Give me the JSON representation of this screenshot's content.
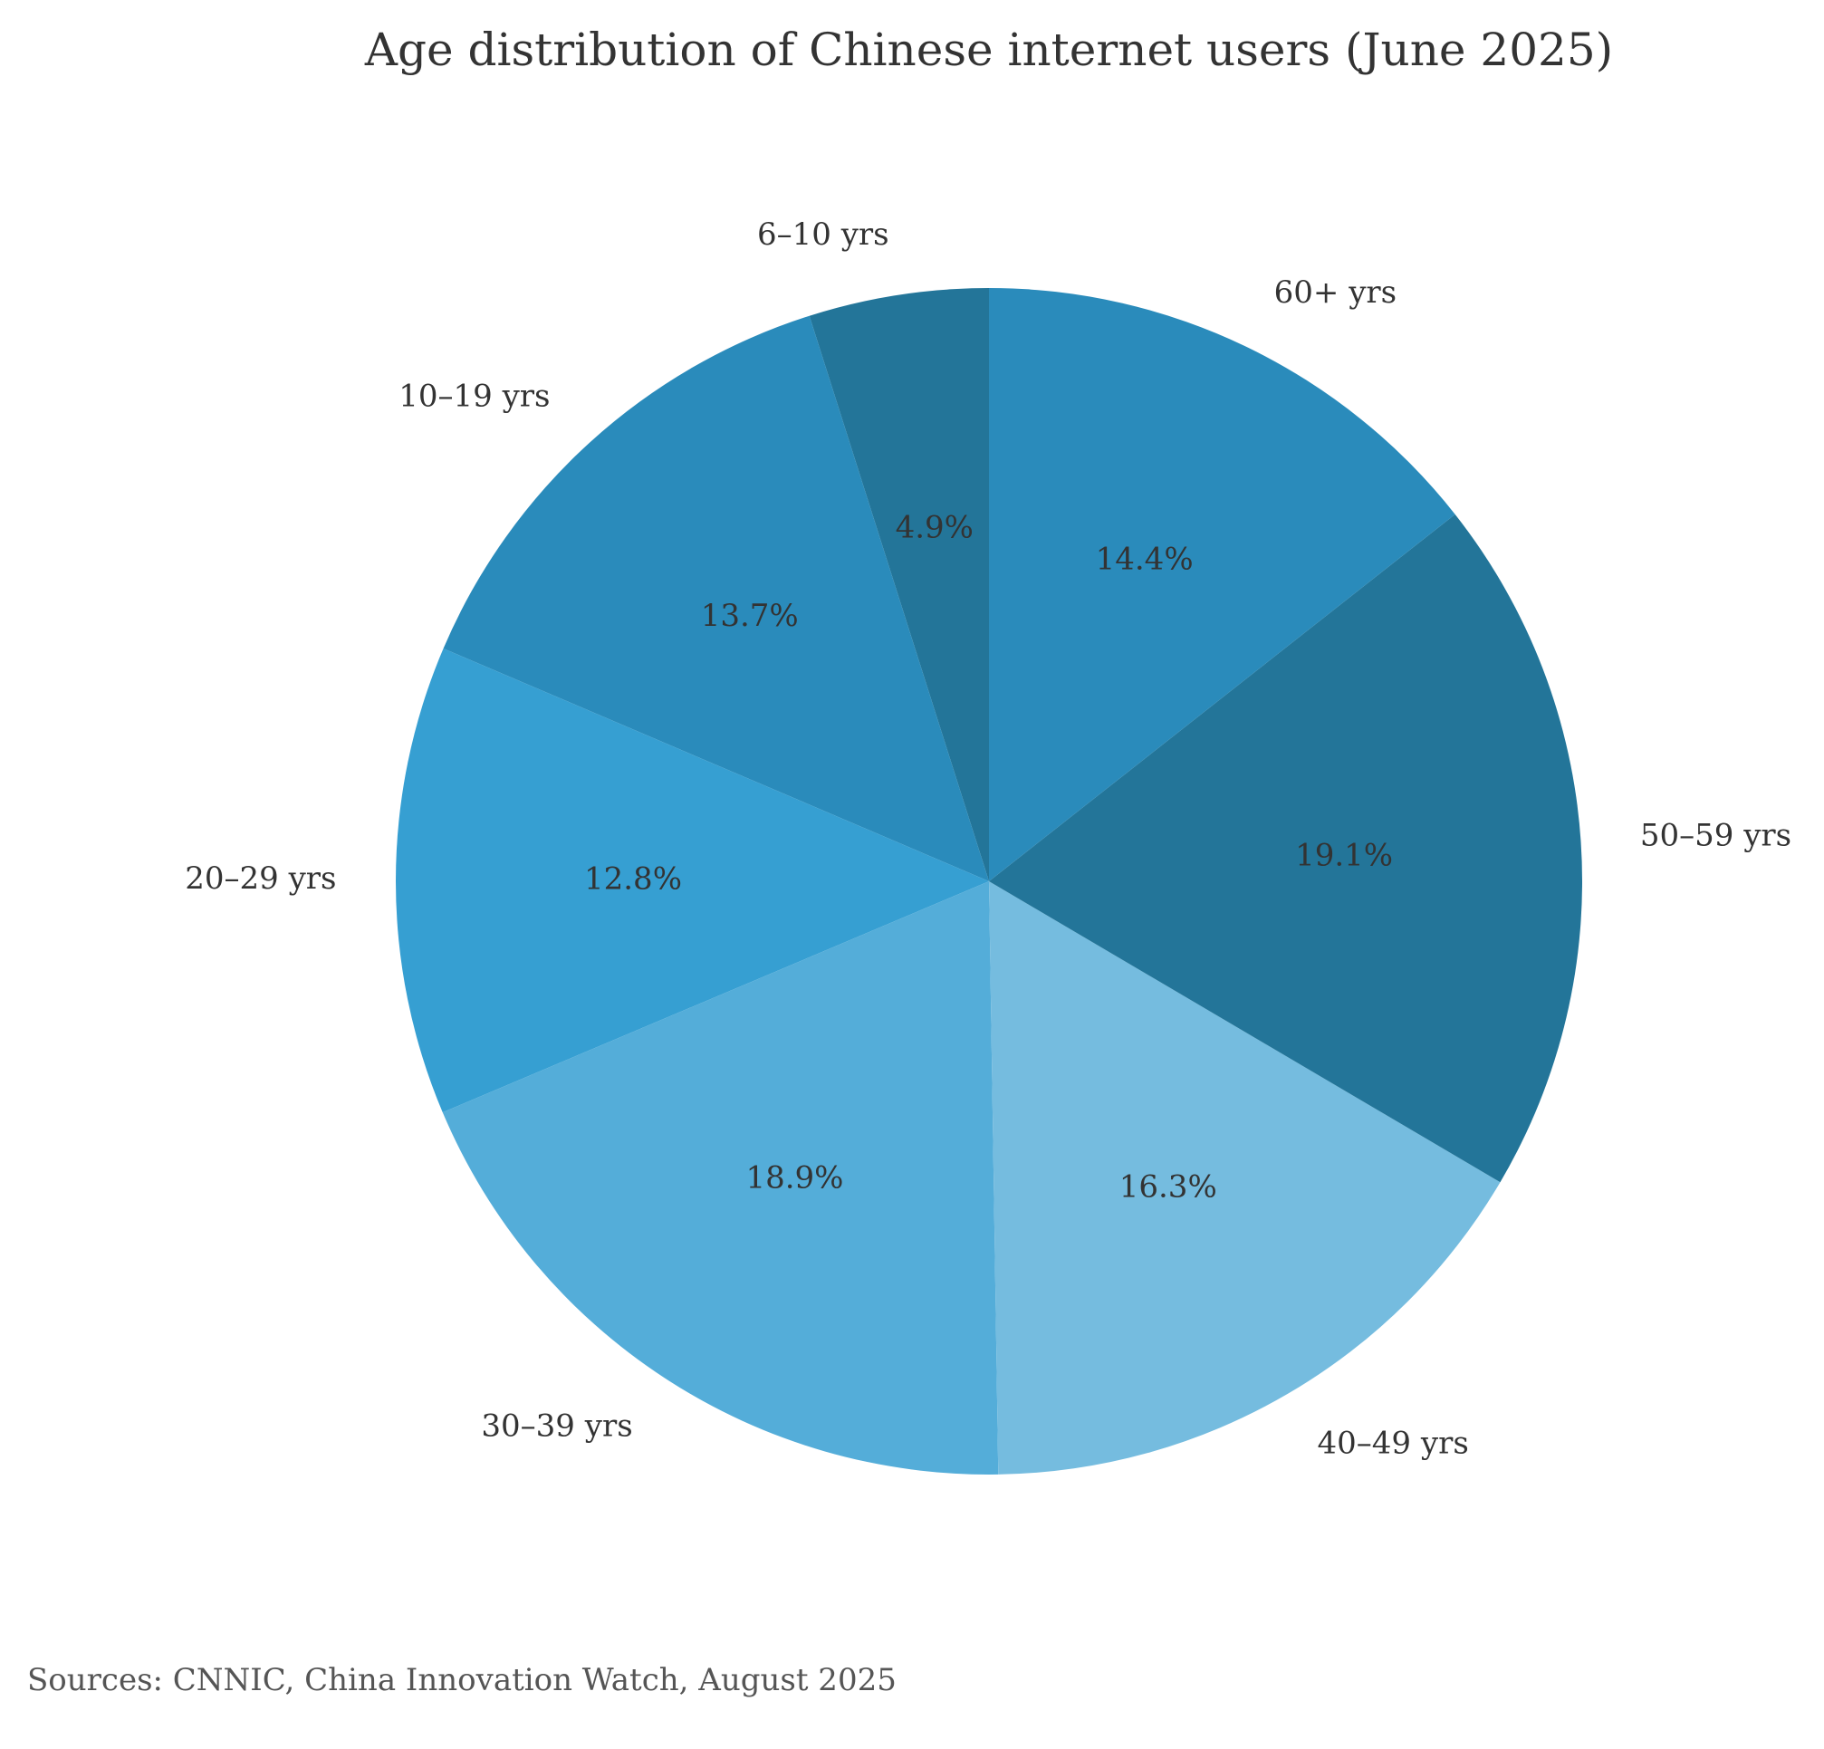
{
  "chart_data": {
    "type": "pie",
    "title": "Age distribution of Chinese internet users (June 2025)",
    "source": "Sources: CNNIC, China Innovation Watch, August 2025",
    "start_angle_deg": 90,
    "direction": "counterclockwise",
    "slices": [
      {
        "label": "6–10 yrs",
        "value": 4.9,
        "pct_label": "4.9%",
        "color": "#237599"
      },
      {
        "label": "10–19 yrs",
        "value": 13.7,
        "pct_label": "13.7%",
        "color": "#2a8bbb"
      },
      {
        "label": "20–29 yrs",
        "value": 12.8,
        "pct_label": "12.8%",
        "color": "#369fd2"
      },
      {
        "label": "30–39 yrs",
        "value": 18.9,
        "pct_label": "18.9%",
        "color": "#54add9"
      },
      {
        "label": "40–49 yrs",
        "value": 16.3,
        "pct_label": "16.3%",
        "color": "#75bcdf"
      },
      {
        "label": "50–59 yrs",
        "value": 19.1,
        "pct_label": "19.1%",
        "color": "#237599"
      },
      {
        "label": "60+ yrs",
        "value": 14.4,
        "pct_label": "14.4%",
        "color": "#2a8bbb"
      }
    ]
  }
}
